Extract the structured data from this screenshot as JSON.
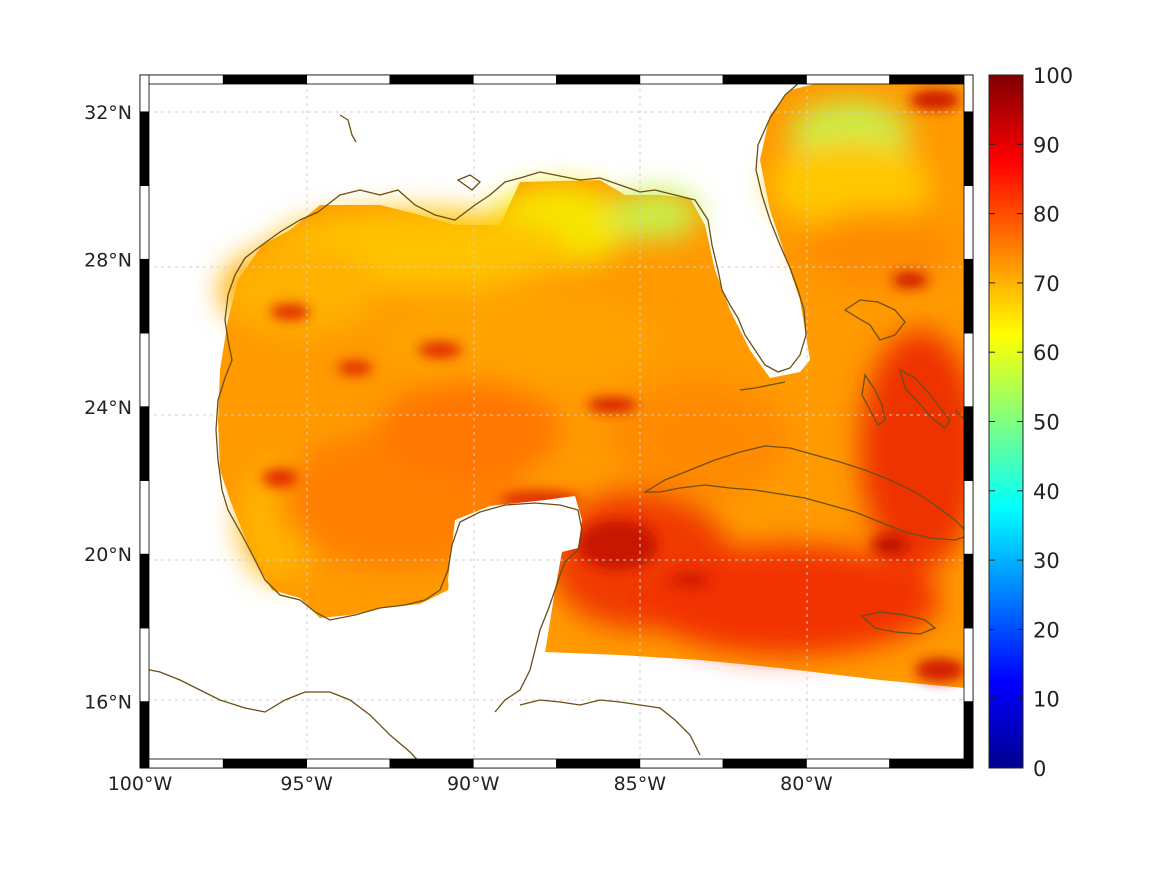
{
  "map": {
    "lon_range": [
      -100,
      -75
    ],
    "lat_range": [
      14.2,
      33
    ],
    "x_ticks": [
      {
        "value": -100,
        "label": "100°W"
      },
      {
        "value": -95,
        "label": "95°W"
      },
      {
        "value": -90,
        "label": "90°W"
      },
      {
        "value": -85,
        "label": "85°W"
      },
      {
        "value": -80,
        "label": "80°W"
      }
    ],
    "y_ticks": [
      {
        "value": 32,
        "label": "32°N"
      },
      {
        "value": 28,
        "label": "28°N"
      },
      {
        "value": 24,
        "label": "24°N"
      },
      {
        "value": 20,
        "label": "20°N"
      },
      {
        "value": 16,
        "label": "16°N"
      }
    ],
    "grid": true,
    "coastline_color": "#6b4e16",
    "land_color": "#ffffff"
  },
  "colorbar": {
    "range": [
      0,
      100
    ],
    "colormap": "jet",
    "ticks": [
      "0",
      "10",
      "20",
      "30",
      "40",
      "50",
      "60",
      "70",
      "80",
      "90",
      "100"
    ]
  },
  "chart_data": {
    "type": "heatmap",
    "x_range": [
      -100,
      -75
    ],
    "y_range": [
      14.2,
      33
    ],
    "value_range": [
      0,
      100
    ],
    "regions": [
      {
        "region": "western Gulf of Mexico",
        "approx_value": 75
      },
      {
        "region": "northern Gulf of Mexico",
        "approx_value": 68
      },
      {
        "region": "off Florida panhandle",
        "approx_value": 60
      },
      {
        "region": "Atlantic east of Florida",
        "approx_value": 75
      },
      {
        "region": "Caribbean Sea",
        "approx_value": 85
      },
      {
        "region": "south of Cuba",
        "approx_value": 88
      }
    ]
  }
}
